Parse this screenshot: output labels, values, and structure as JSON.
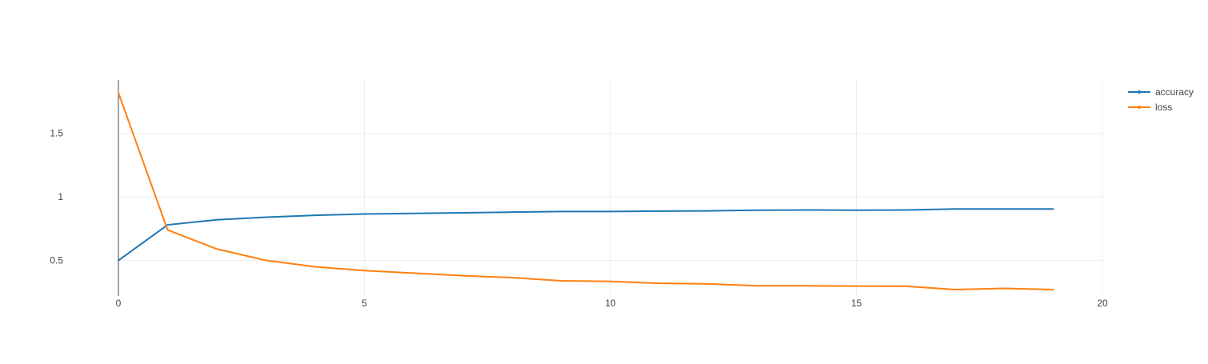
{
  "chart_data": {
    "type": "line",
    "title": "",
    "xlabel": "",
    "ylabel": "",
    "xlim": [
      0,
      20
    ],
    "ylim": [
      0.22,
      1.92
    ],
    "x_ticks": [
      0,
      5,
      10,
      15,
      20
    ],
    "y_ticks": [
      0.5,
      1,
      1.5
    ],
    "grid": true,
    "legend": "top-right",
    "series": [
      {
        "name": "accuracy",
        "color": "#1f77b4",
        "x": [
          0,
          1,
          2,
          3,
          4,
          5,
          6,
          7,
          8,
          9,
          10,
          11,
          12,
          13,
          14,
          15,
          16,
          17,
          18,
          19
        ],
        "values": [
          0.5,
          0.78,
          0.82,
          0.84,
          0.855,
          0.865,
          0.87,
          0.875,
          0.88,
          0.885,
          0.885,
          0.888,
          0.89,
          0.895,
          0.897,
          0.895,
          0.897,
          0.905,
          0.905,
          0.905
        ]
      },
      {
        "name": "loss",
        "color": "#ff7f0e",
        "x": [
          0,
          1,
          2,
          3,
          4,
          5,
          6,
          7,
          8,
          9,
          10,
          11,
          12,
          13,
          14,
          15,
          16,
          17,
          18,
          19
        ],
        "values": [
          1.82,
          0.74,
          0.59,
          0.5,
          0.45,
          0.42,
          0.4,
          0.38,
          0.365,
          0.34,
          0.335,
          0.32,
          0.315,
          0.3,
          0.3,
          0.298,
          0.297,
          0.27,
          0.28,
          0.27
        ]
      }
    ]
  }
}
